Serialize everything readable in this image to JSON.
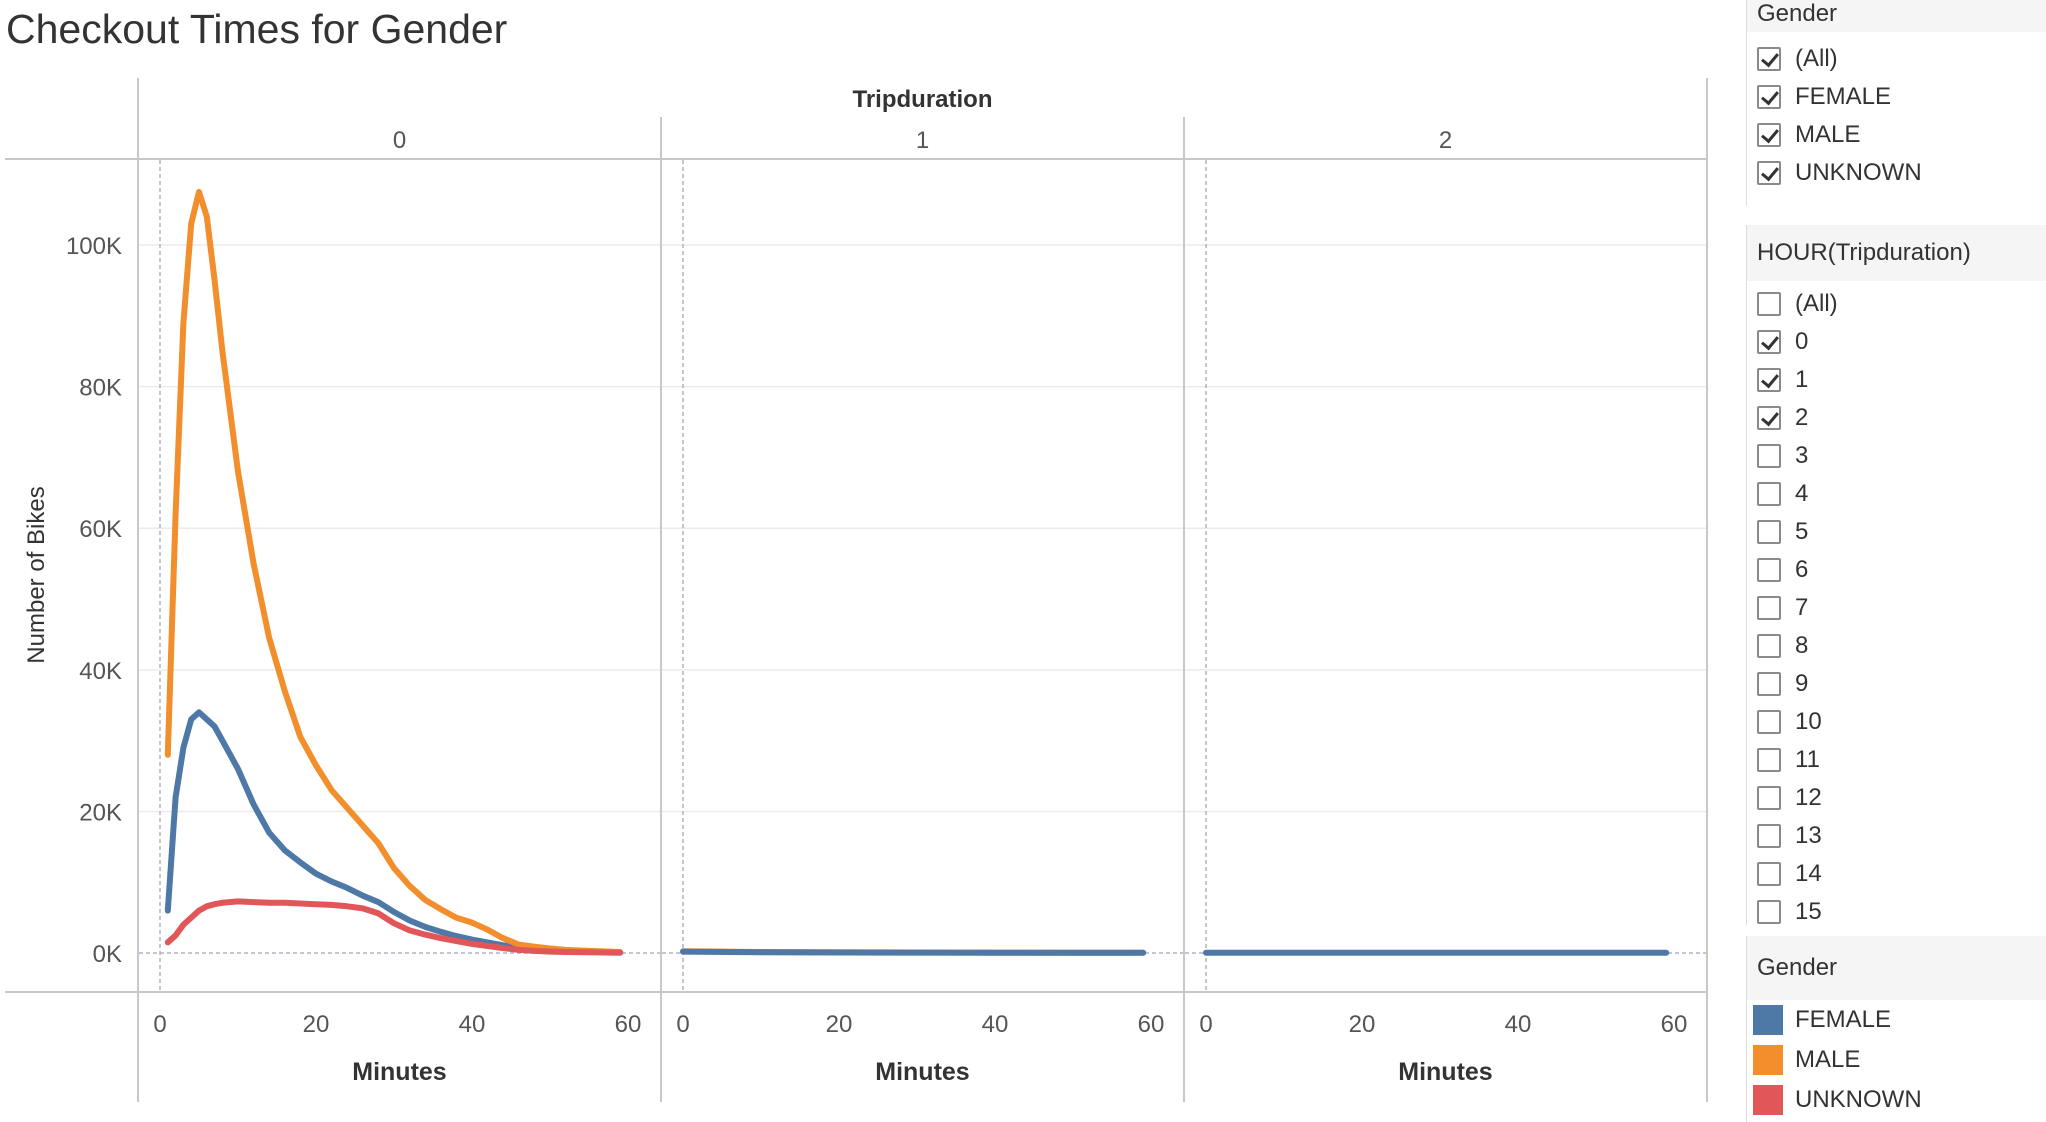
{
  "title": "Checkout Times for Gender",
  "colors": {
    "FEMALE": "#4e79a7",
    "MALE": "#f28e2b",
    "UNKNOWN": "#e15759"
  },
  "filters": {
    "gender": {
      "title": "Gender",
      "items": [
        {
          "label": "(All)",
          "checked": true
        },
        {
          "label": "FEMALE",
          "checked": true
        },
        {
          "label": "MALE",
          "checked": true
        },
        {
          "label": "UNKNOWN",
          "checked": true
        }
      ]
    },
    "hour": {
      "title": "HOUR(Tripduration)",
      "items": [
        {
          "label": "(All)",
          "checked": false
        },
        {
          "label": "0",
          "checked": true
        },
        {
          "label": "1",
          "checked": true
        },
        {
          "label": "2",
          "checked": true
        },
        {
          "label": "3",
          "checked": false
        },
        {
          "label": "4",
          "checked": false
        },
        {
          "label": "5",
          "checked": false
        },
        {
          "label": "6",
          "checked": false
        },
        {
          "label": "7",
          "checked": false
        },
        {
          "label": "8",
          "checked": false
        },
        {
          "label": "9",
          "checked": false
        },
        {
          "label": "10",
          "checked": false
        },
        {
          "label": "11",
          "checked": false
        },
        {
          "label": "12",
          "checked": false
        },
        {
          "label": "13",
          "checked": false
        },
        {
          "label": "14",
          "checked": false
        },
        {
          "label": "15",
          "checked": false
        }
      ]
    }
  },
  "legend": {
    "title": "Gender",
    "items": [
      {
        "label": "FEMALE",
        "color": "#4e79a7"
      },
      {
        "label": "MALE",
        "color": "#f28e2b"
      },
      {
        "label": "UNKNOWN",
        "color": "#e15759"
      }
    ]
  },
  "chart_data": {
    "type": "line",
    "title": "",
    "column_header": "Tripduration",
    "panels": [
      "0",
      "1",
      "2"
    ],
    "xlabel": "Minutes",
    "ylabel": "Number of Bikes",
    "xlim": [
      0,
      60
    ],
    "x_ticks": [
      0,
      20,
      40,
      60
    ],
    "x_tick_labels": [
      "0",
      "20",
      "40",
      "60"
    ],
    "ylim": [
      -5500,
      112000
    ],
    "y_ticks": [
      0,
      20000,
      40000,
      60000,
      80000,
      100000
    ],
    "y_tick_labels": [
      "0K",
      "20K",
      "40K",
      "60K",
      "80K",
      "100K"
    ],
    "grid": true,
    "series": [
      {
        "name": "FEMALE",
        "panel": "0",
        "x": [
          1,
          2,
          3,
          4,
          5,
          6,
          7,
          8,
          10,
          12,
          14,
          16,
          18,
          20,
          22,
          24,
          26,
          28,
          30,
          32,
          34,
          36,
          38,
          40,
          42,
          44,
          46,
          48,
          50,
          52,
          55,
          59
        ],
        "y": [
          6000,
          22000,
          29000,
          33000,
          34000,
          33000,
          32000,
          30000,
          26000,
          21000,
          17000,
          14500,
          12800,
          11200,
          10100,
          9200,
          8100,
          7200,
          5800,
          4600,
          3700,
          3000,
          2400,
          1900,
          1500,
          1100,
          800,
          500,
          350,
          250,
          150,
          100
        ]
      },
      {
        "name": "MALE",
        "panel": "0",
        "x": [
          1,
          2,
          3,
          4,
          5,
          6,
          7,
          8,
          10,
          12,
          14,
          16,
          18,
          20,
          22,
          24,
          26,
          28,
          30,
          32,
          34,
          36,
          38,
          40,
          42,
          44,
          46,
          48,
          50,
          52,
          55,
          59
        ],
        "y": [
          28000,
          62000,
          89000,
          103000,
          107500,
          104000,
          95000,
          85000,
          68000,
          55000,
          44500,
          37000,
          30500,
          26500,
          23000,
          20500,
          18000,
          15500,
          12000,
          9500,
          7500,
          6200,
          5000,
          4300,
          3300,
          2100,
          1200,
          900,
          650,
          450,
          300,
          150
        ]
      },
      {
        "name": "UNKNOWN",
        "panel": "0",
        "x": [
          1,
          2,
          3,
          4,
          5,
          6,
          7,
          8,
          10,
          12,
          14,
          16,
          18,
          20,
          22,
          24,
          26,
          28,
          30,
          32,
          34,
          36,
          38,
          40,
          42,
          44,
          46,
          48,
          50,
          52,
          55,
          59
        ],
        "y": [
          1500,
          2500,
          4000,
          5000,
          6000,
          6600,
          6900,
          7100,
          7300,
          7200,
          7100,
          7100,
          7000,
          6900,
          6800,
          6600,
          6300,
          5600,
          4200,
          3200,
          2600,
          2100,
          1700,
          1300,
          1000,
          700,
          450,
          300,
          200,
          150,
          100,
          50
        ]
      },
      {
        "name": "MALE",
        "panel": "1",
        "x": [
          0,
          10,
          20,
          30,
          40,
          50,
          59
        ],
        "y": [
          250,
          150,
          100,
          80,
          60,
          50,
          40
        ]
      },
      {
        "name": "FEMALE",
        "panel": "1",
        "x": [
          0,
          10,
          20,
          30,
          40,
          50,
          59
        ],
        "y": [
          200,
          120,
          80,
          60,
          50,
          40,
          30
        ]
      },
      {
        "name": "FEMALE",
        "panel": "2",
        "x": [
          0,
          10,
          20,
          30,
          40,
          50,
          59
        ],
        "y": [
          30,
          30,
          30,
          30,
          30,
          30,
          30
        ]
      }
    ]
  }
}
